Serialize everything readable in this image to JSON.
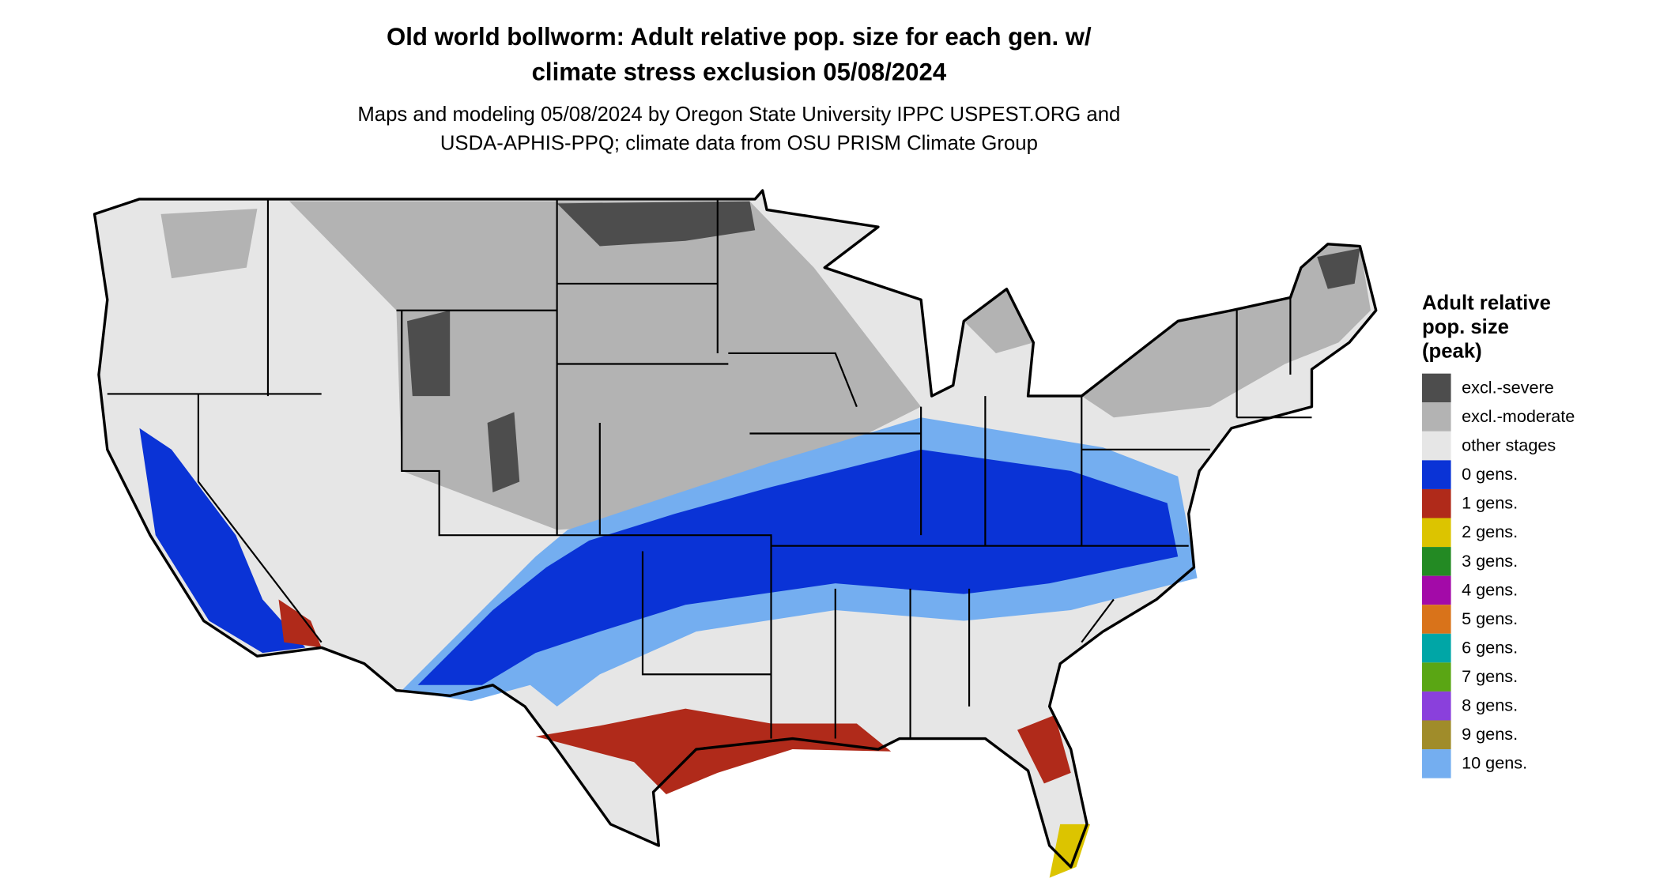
{
  "title": [
    "Old world bollworm: Adult relative pop. size for each gen. w/",
    "climate stress exclusion 05/08/2024"
  ],
  "subtitle": [
    "Maps and modeling 05/08/2024 by Oregon State University IPPC USPEST.ORG and",
    "USDA-APHIS-PPQ; climate data from OSU PRISM Climate Group"
  ],
  "legend": {
    "title": [
      "Adult relative",
      "pop. size",
      "(peak)"
    ],
    "items": [
      {
        "label": "excl.-severe",
        "color": "#4d4d4d"
      },
      {
        "label": "excl.-moderate",
        "color": "#b3b3b3"
      },
      {
        "label": "other stages",
        "color": "#e6e6e6"
      },
      {
        "label": "0 gens.",
        "color": "#0a33d6"
      },
      {
        "label": "1 gens.",
        "color": "#b02a1a"
      },
      {
        "label": "2 gens.",
        "color": "#dcc400"
      },
      {
        "label": "3 gens.",
        "color": "#238a23"
      },
      {
        "label": "4 gens.",
        "color": "#a30aa8"
      },
      {
        "label": "5 gens.",
        "color": "#d9731a"
      },
      {
        "label": "6 gens.",
        "color": "#00a6a6"
      },
      {
        "label": "7 gens.",
        "color": "#5aa614"
      },
      {
        "label": "8 gens.",
        "color": "#8a40dc"
      },
      {
        "label": "9 gens.",
        "color": "#a08c2a"
      },
      {
        "label": "10 gens.",
        "color": "#74aef0"
      }
    ]
  }
}
